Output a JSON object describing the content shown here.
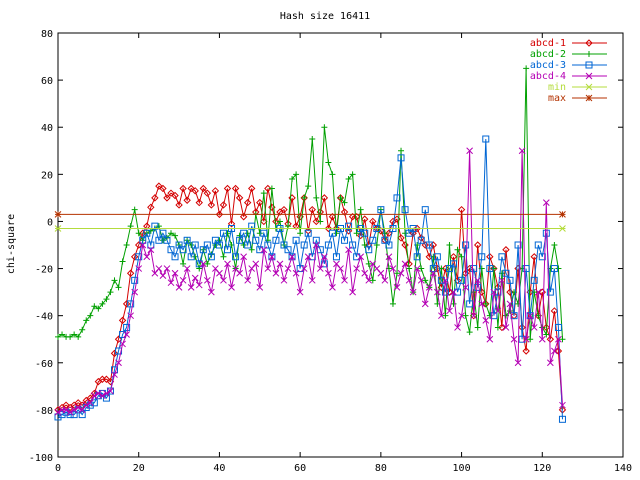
{
  "chart_data": {
    "type": "line",
    "title": "Hash size 16411",
    "xlabel": "",
    "ylabel": "chi-square",
    "xlim": [
      0,
      140
    ],
    "ylim": [
      -100,
      80
    ],
    "xticks": [
      0,
      20,
      40,
      60,
      80,
      100,
      120,
      140
    ],
    "yticks": [
      -100,
      -80,
      -60,
      -40,
      -20,
      0,
      20,
      40,
      60,
      80
    ],
    "grid": false,
    "legend_position": "top-right",
    "series": [
      {
        "name": "abcd-1",
        "color": "#d40000",
        "marker": "diamond",
        "x": [
          0,
          1,
          2,
          3,
          4,
          5,
          6,
          7,
          8,
          9,
          10,
          11,
          12,
          13,
          14,
          15,
          16,
          17,
          18,
          19,
          20,
          21,
          22,
          23,
          24,
          25,
          26,
          27,
          28,
          29,
          30,
          31,
          32,
          33,
          34,
          35,
          36,
          37,
          38,
          39,
          40,
          41,
          42,
          43,
          44,
          45,
          46,
          47,
          48,
          49,
          50,
          51,
          52,
          53,
          54,
          55,
          56,
          57,
          58,
          59,
          60,
          61,
          62,
          63,
          64,
          65,
          66,
          67,
          68,
          69,
          70,
          71,
          72,
          73,
          74,
          75,
          76,
          77,
          78,
          79,
          80,
          81,
          82,
          83,
          84,
          85,
          86,
          87,
          88,
          89,
          90,
          91,
          92,
          93,
          94,
          95,
          96,
          97,
          98,
          99,
          100,
          101,
          102,
          103,
          104,
          105,
          106,
          107,
          108,
          109,
          110,
          111,
          112,
          113,
          114,
          115,
          116,
          117,
          118,
          119,
          120,
          121,
          122,
          123,
          124,
          125
        ],
        "y": [
          -80,
          -79,
          -78,
          -79,
          -78,
          -77,
          -78,
          -76,
          -75,
          -73,
          -68,
          -67,
          -67,
          -68,
          -56,
          -50,
          -42,
          -35,
          -22,
          -15,
          -10,
          -5,
          -2,
          6,
          10,
          15,
          14,
          10,
          12,
          11,
          7,
          14,
          9,
          14,
          13,
          8,
          14,
          12,
          7,
          13,
          3,
          7,
          14,
          -1,
          14,
          10,
          2,
          8,
          14,
          4,
          8,
          0,
          14,
          6,
          0,
          4,
          5,
          -1,
          10,
          -2,
          2,
          10,
          -4,
          5,
          0,
          4,
          10,
          -3,
          2,
          -3,
          10,
          4,
          -4,
          2,
          2,
          -6,
          1,
          -10,
          0,
          -3,
          -4,
          -8,
          -5,
          0,
          1,
          -7,
          -10,
          -18,
          -5,
          -3,
          -7,
          -10,
          -15,
          -10,
          -20,
          -28,
          -20,
          -30,
          -15,
          -25,
          5,
          -22,
          -20,
          -40,
          -10,
          -30,
          -35,
          -15,
          -20,
          -28,
          -45,
          -12,
          -30,
          -40,
          -20,
          -45,
          -55,
          -30,
          -15,
          -40,
          -30,
          -45,
          -50,
          -38,
          -55,
          -80
        ]
      },
      {
        "name": "abcd-2",
        "color": "#00a000",
        "marker": "plus",
        "x": [
          0,
          1,
          2,
          3,
          4,
          5,
          6,
          7,
          8,
          9,
          10,
          11,
          12,
          13,
          14,
          15,
          16,
          17,
          18,
          19,
          20,
          21,
          22,
          23,
          24,
          25,
          26,
          27,
          28,
          29,
          30,
          31,
          32,
          33,
          34,
          35,
          36,
          37,
          38,
          39,
          40,
          41,
          42,
          43,
          44,
          45,
          46,
          47,
          48,
          49,
          50,
          51,
          52,
          53,
          54,
          55,
          56,
          57,
          58,
          59,
          60,
          61,
          62,
          63,
          64,
          65,
          66,
          67,
          68,
          69,
          70,
          71,
          72,
          73,
          74,
          75,
          76,
          77,
          78,
          79,
          80,
          81,
          82,
          83,
          84,
          85,
          86,
          87,
          88,
          89,
          90,
          91,
          92,
          93,
          94,
          95,
          96,
          97,
          98,
          99,
          100,
          101,
          102,
          103,
          104,
          105,
          106,
          107,
          108,
          109,
          110,
          111,
          112,
          113,
          114,
          115,
          116,
          117,
          118,
          119,
          120,
          121,
          122,
          123,
          124,
          125
        ],
        "y": [
          -49,
          -48,
          -49,
          -49,
          -48,
          -49,
          -46,
          -42,
          -40,
          -36,
          -37,
          -35,
          -33,
          -30,
          -25,
          -28,
          -17,
          -10,
          -2,
          5,
          -5,
          -8,
          -5,
          -4,
          -3,
          -2,
          -8,
          -7,
          -5,
          -6,
          -10,
          -18,
          -8,
          -10,
          -15,
          -20,
          -12,
          -18,
          -14,
          -10,
          -8,
          -15,
          -5,
          -10,
          -20,
          -6,
          -10,
          -5,
          -12,
          3,
          -5,
          12,
          -8,
          14,
          -3,
          0,
          -10,
          -2,
          18,
          20,
          -5,
          10,
          15,
          35,
          10,
          0,
          40,
          25,
          20,
          -5,
          10,
          8,
          18,
          20,
          -5,
          5,
          -10,
          -18,
          -25,
          -10,
          5,
          -5,
          -20,
          -35,
          -22,
          30,
          -5,
          -20,
          -30,
          -10,
          -20,
          -25,
          -28,
          -15,
          -35,
          -20,
          -40,
          -10,
          -35,
          -12,
          -15,
          -40,
          -47,
          -30,
          -45,
          -20,
          -35,
          -40,
          -20,
          -45,
          -22,
          -40,
          -38,
          -30,
          -35,
          -20,
          65,
          -50,
          -30,
          -40,
          -45,
          -48,
          -20,
          -10,
          -20,
          -50
        ]
      },
      {
        "name": "abcd-3",
        "color": "#0066d4",
        "marker": "square",
        "x": [
          0,
          1,
          2,
          3,
          4,
          5,
          6,
          7,
          8,
          9,
          10,
          11,
          12,
          13,
          14,
          15,
          16,
          17,
          18,
          19,
          20,
          21,
          22,
          23,
          24,
          25,
          26,
          27,
          28,
          29,
          30,
          31,
          32,
          33,
          34,
          35,
          36,
          37,
          38,
          39,
          40,
          41,
          42,
          43,
          44,
          45,
          46,
          47,
          48,
          49,
          50,
          51,
          52,
          53,
          54,
          55,
          56,
          57,
          58,
          59,
          60,
          61,
          62,
          63,
          64,
          65,
          66,
          67,
          68,
          69,
          70,
          71,
          72,
          73,
          74,
          75,
          76,
          77,
          78,
          79,
          80,
          81,
          82,
          83,
          84,
          85,
          86,
          87,
          88,
          89,
          90,
          91,
          92,
          93,
          94,
          95,
          96,
          97,
          98,
          99,
          100,
          101,
          102,
          103,
          104,
          105,
          106,
          107,
          108,
          109,
          110,
          111,
          112,
          113,
          114,
          115,
          116,
          117,
          118,
          119,
          120,
          121,
          122,
          123,
          124,
          125
        ],
        "y": [
          -83,
          -82,
          -81,
          -82,
          -82,
          -80,
          -82,
          -79,
          -78,
          -77,
          -74,
          -73,
          -75,
          -72,
          -63,
          -55,
          -48,
          -45,
          -35,
          -25,
          -15,
          -8,
          -5,
          -10,
          -2,
          -8,
          -5,
          -8,
          -12,
          -15,
          -10,
          -12,
          -8,
          -15,
          -10,
          -18,
          -12,
          -10,
          -15,
          -8,
          -10,
          -5,
          -12,
          -3,
          -15,
          -8,
          -5,
          -10,
          -2,
          -8,
          -12,
          -5,
          -10,
          -15,
          -8,
          -3,
          -10,
          -12,
          -15,
          -8,
          -20,
          -10,
          -5,
          -15,
          -8,
          -12,
          -18,
          -10,
          -5,
          -15,
          -3,
          -8,
          -2,
          -10,
          -15,
          -3,
          -5,
          -12,
          -8,
          -3,
          5,
          -8,
          -10,
          -3,
          10,
          27,
          5,
          -5,
          -3,
          -15,
          -8,
          5,
          -10,
          -20,
          -15,
          -25,
          -30,
          -20,
          -18,
          -30,
          -25,
          -10,
          -35,
          -20,
          -28,
          -15,
          35,
          -20,
          -40,
          -30,
          -15,
          -22,
          -25,
          -40,
          -10,
          -50,
          -20,
          -40,
          -25,
          -10,
          -15,
          -5,
          -30,
          -20,
          -45,
          -84
        ]
      },
      {
        "name": "abcd-4",
        "color": "#b400b4",
        "marker": "x",
        "x": [
          0,
          1,
          2,
          3,
          4,
          5,
          6,
          7,
          8,
          9,
          10,
          11,
          12,
          13,
          14,
          15,
          16,
          17,
          18,
          19,
          20,
          21,
          22,
          23,
          24,
          25,
          26,
          27,
          28,
          29,
          30,
          31,
          32,
          33,
          34,
          35,
          36,
          37,
          38,
          39,
          40,
          41,
          42,
          43,
          44,
          45,
          46,
          47,
          48,
          49,
          50,
          51,
          52,
          53,
          54,
          55,
          56,
          57,
          58,
          59,
          60,
          61,
          62,
          63,
          64,
          65,
          66,
          67,
          68,
          69,
          70,
          71,
          72,
          73,
          74,
          75,
          76,
          77,
          78,
          79,
          80,
          81,
          82,
          83,
          84,
          85,
          86,
          87,
          88,
          89,
          90,
          91,
          92,
          93,
          94,
          95,
          96,
          97,
          98,
          99,
          100,
          101,
          102,
          103,
          104,
          105,
          106,
          107,
          108,
          109,
          110,
          111,
          112,
          113,
          114,
          115,
          116,
          117,
          118,
          119,
          120,
          121,
          122,
          123,
          124,
          125
        ],
        "y": [
          -81,
          -80,
          -80,
          -81,
          -80,
          -79,
          -80,
          -78,
          -77,
          -74,
          -73,
          -74,
          -73,
          -72,
          -65,
          -60,
          -52,
          -48,
          -40,
          -30,
          -20,
          -10,
          -15,
          -12,
          -22,
          -20,
          -23,
          -20,
          -26,
          -22,
          -28,
          -25,
          -20,
          -28,
          -24,
          -27,
          -18,
          -25,
          -30,
          -20,
          -22,
          -25,
          -18,
          -28,
          -20,
          -22,
          -15,
          -25,
          -20,
          -18,
          -28,
          -12,
          -20,
          -15,
          -22,
          -18,
          -25,
          -20,
          -15,
          -22,
          -30,
          -20,
          -15,
          -25,
          -10,
          -20,
          -15,
          -22,
          -28,
          -18,
          -20,
          -25,
          -12,
          -30,
          -20,
          -15,
          -22,
          -25,
          -18,
          -20,
          -22,
          -25,
          -15,
          -20,
          -28,
          -22,
          -18,
          -25,
          -30,
          -20,
          -25,
          -35,
          -28,
          -22,
          -30,
          -40,
          -25,
          -38,
          -30,
          -45,
          -40,
          -28,
          30,
          -40,
          -25,
          -35,
          -42,
          -50,
          -30,
          -38,
          -25,
          -45,
          -35,
          -50,
          -60,
          30,
          -50,
          -40,
          -45,
          -30,
          -50,
          8,
          -60,
          -55,
          -50,
          -78
        ]
      },
      {
        "name": "min",
        "color": "#b4dc3c",
        "marker": "star",
        "x": [
          0,
          125
        ],
        "y": [
          -3,
          -3
        ]
      },
      {
        "name": "max",
        "color": "#b43200",
        "marker": "asterisk",
        "x": [
          0,
          125
        ],
        "y": [
          3,
          3
        ]
      }
    ]
  }
}
